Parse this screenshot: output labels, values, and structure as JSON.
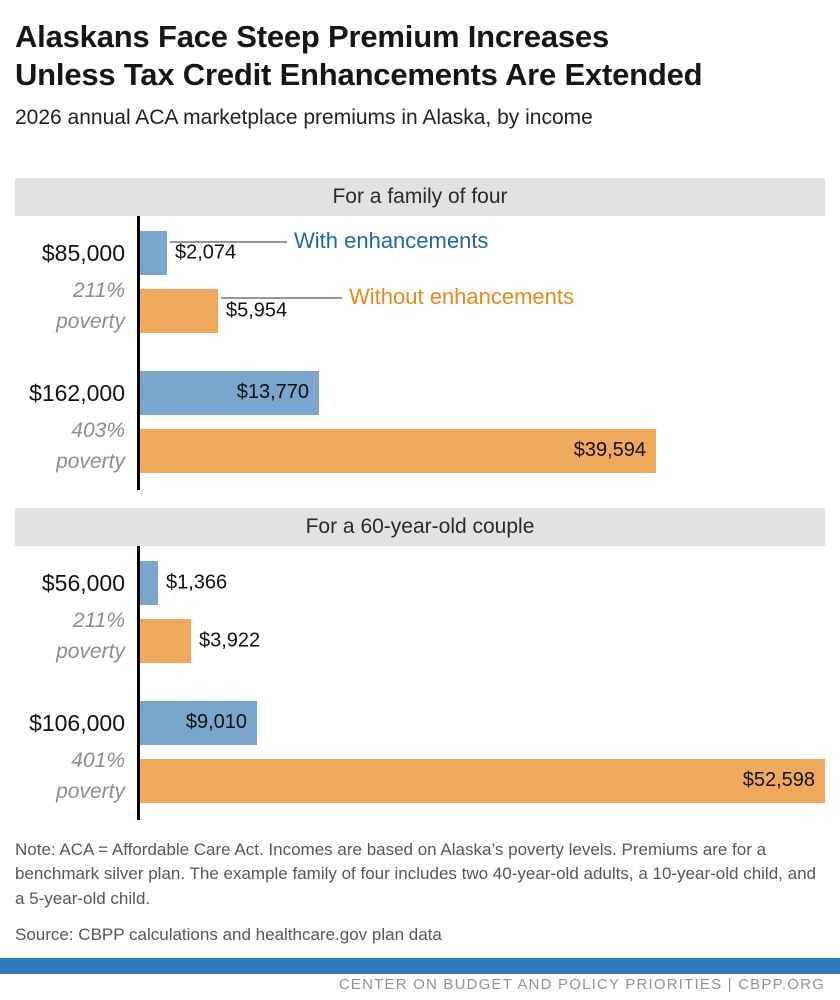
{
  "header": {
    "title_line1": "Alaskans Face Steep Premium Increases",
    "title_line2": "Unless Tax Credit Enhancements Are Extended",
    "subtitle": "2026 annual ACA marketplace premiums in Alaska, by income"
  },
  "chart_data": {
    "type": "bar",
    "orientation": "horizontal",
    "unit": "USD per year",
    "axis_max": 52598,
    "grid": false,
    "series": [
      {
        "name": "With enhancements",
        "color": "#7aa5cd"
      },
      {
        "name": "Without enhancements",
        "color": "#f0a95c"
      }
    ],
    "panels": [
      {
        "title": "For a family of four",
        "groups": [
          {
            "income": "$85,000",
            "poverty_pct": "211%",
            "poverty_word": "poverty",
            "with_value": 2074,
            "with_label": "$2,074",
            "without_value": 5954,
            "without_label": "$5,954"
          },
          {
            "income": "$162,000",
            "poverty_pct": "403%",
            "poverty_word": "poverty",
            "with_value": 13770,
            "with_label": "$13,770",
            "without_value": 39594,
            "without_label": "$39,594"
          }
        ]
      },
      {
        "title": "For a 60-year-old couple",
        "groups": [
          {
            "income": "$56,000",
            "poverty_pct": "211%",
            "poverty_word": "poverty",
            "with_value": 1366,
            "with_label": "$1,366",
            "without_value": 3922,
            "without_label": "$3,922"
          },
          {
            "income": "$106,000",
            "poverty_pct": "401%",
            "poverty_word": "poverty",
            "with_value": 9010,
            "with_label": "$9,010",
            "without_value": 52598,
            "without_label": "$52,598"
          }
        ]
      }
    ]
  },
  "legend": {
    "with_label": "With enhancements",
    "without_label": "Without enhancements"
  },
  "colors": {
    "bar_with": "#7aa5cd",
    "bar_without": "#f0a95c",
    "legend_with_text": "#2067a6",
    "legend_without_text": "#e8891c",
    "panel_header_bg": "#e2e2e2",
    "footer_bar": "#2e78bc"
  },
  "notes": {
    "note": "Note: ACA = Affordable Care Act. Incomes are based on Alaska’s poverty levels. Premiums are for a benchmark silver plan. The example family of four includes two 40-year-old adults, a 10-year-old child, and a 5-year-old child.",
    "source": "Source: CBPP calculations and healthcare.gov plan data"
  },
  "footer": {
    "text": "CENTER ON BUDGET AND POLICY PRIORITIES | CBPP.ORG"
  }
}
